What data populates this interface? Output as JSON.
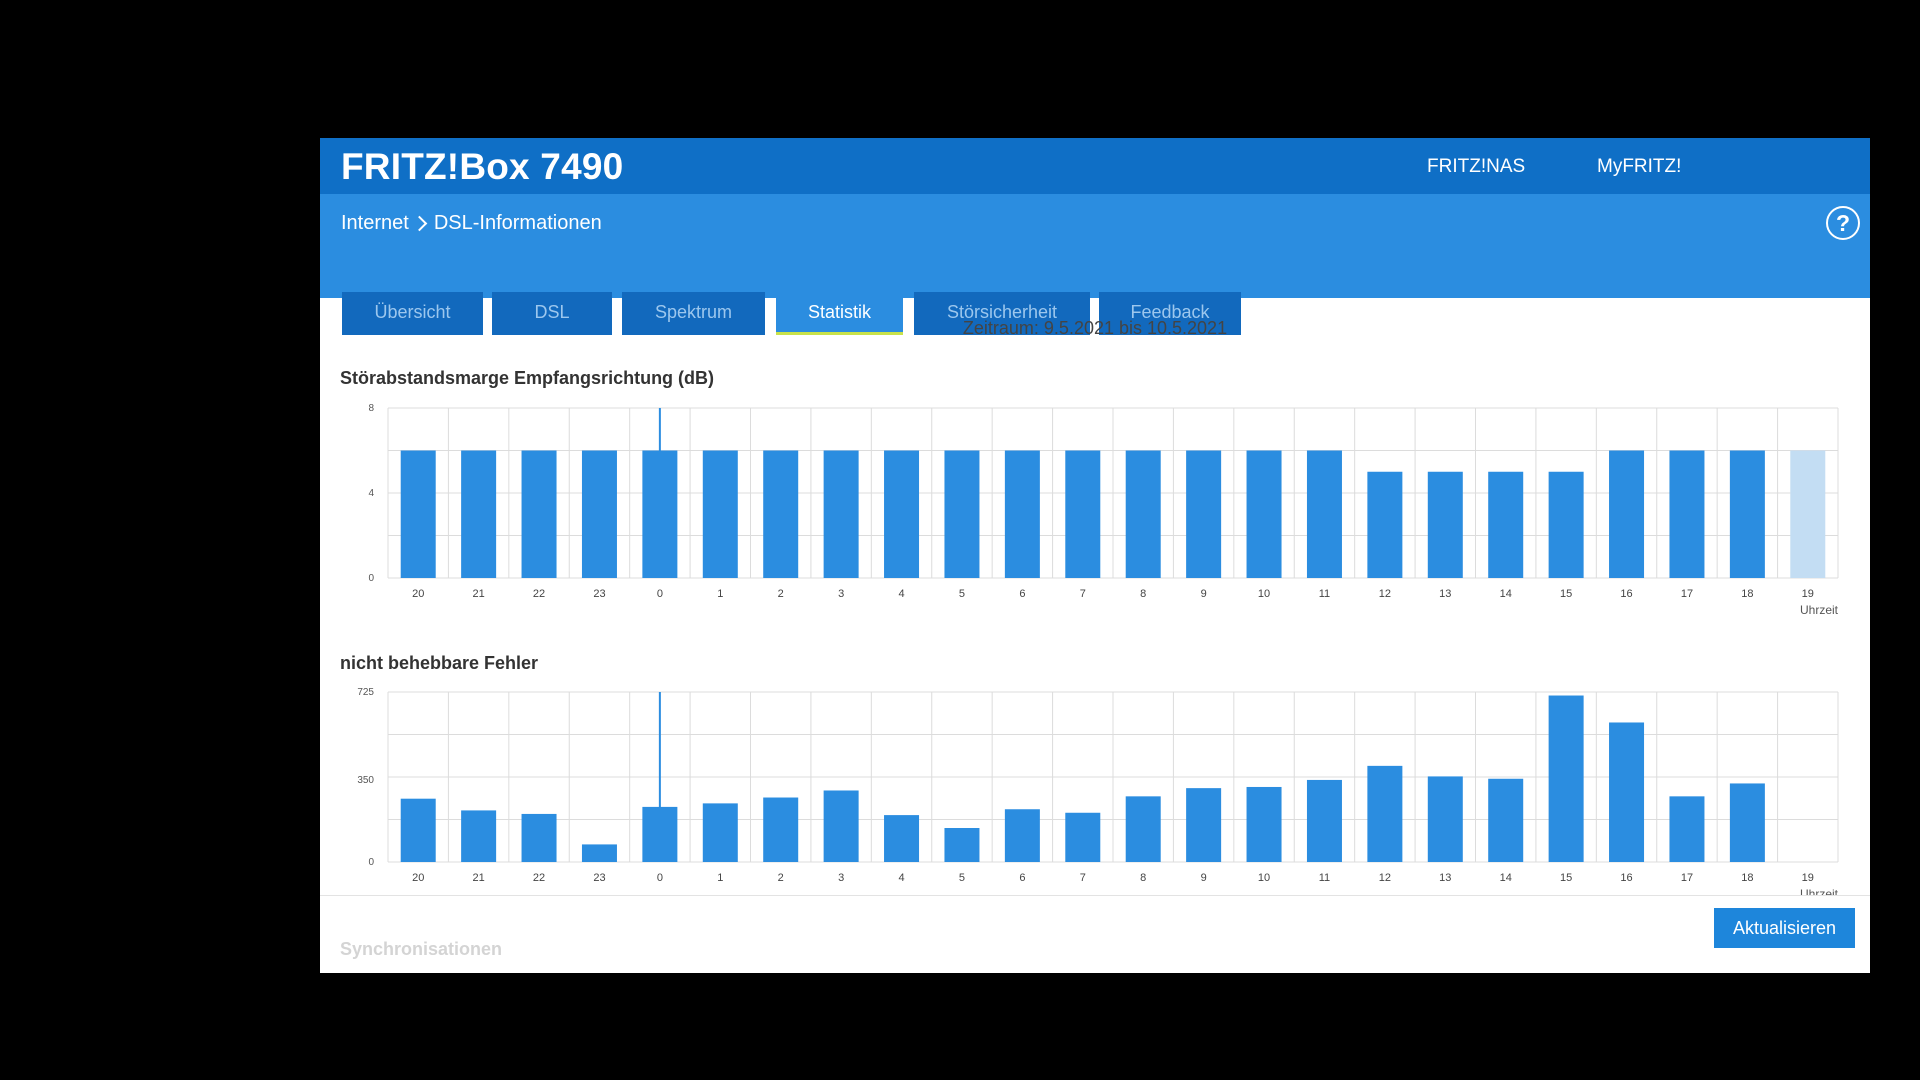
{
  "header": {
    "title": "FRITZ!Box 7490",
    "links": [
      "FRITZ!NAS",
      "MyFRITZ!"
    ]
  },
  "breadcrumb": {
    "parent": "Internet",
    "current": "DSL-Informationen"
  },
  "help_icon": "?",
  "tabs": [
    {
      "label": "Übersicht",
      "active": false
    },
    {
      "label": "DSL",
      "active": false
    },
    {
      "label": "Spektrum",
      "active": false
    },
    {
      "label": "Statistik",
      "active": true
    },
    {
      "label": "Störsicherheit",
      "active": false
    },
    {
      "label": "Feedback",
      "active": false
    }
  ],
  "period": "Zeitraum: 9.5.2021 bis 10.5.2021",
  "colors": {
    "bar": "#2b8de0",
    "bar_current": "#c3ddf3",
    "marker": "#2b8de0",
    "grid": "#dcdcdc"
  },
  "chart_data": [
    {
      "type": "bar",
      "title": "Störabstandsmarge Empfangsrichtung (dB)",
      "xlabel": "Uhrzeit",
      "categories": [
        "20",
        "21",
        "22",
        "23",
        "0",
        "1",
        "2",
        "3",
        "4",
        "5",
        "6",
        "7",
        "8",
        "9",
        "10",
        "11",
        "12",
        "13",
        "14",
        "15",
        "16",
        "17",
        "18",
        "19"
      ],
      "values": [
        6,
        6,
        6,
        6,
        6,
        6,
        6,
        6,
        6,
        6,
        6,
        6,
        6,
        6,
        6,
        6,
        5,
        5,
        5,
        5,
        6,
        6,
        6,
        6
      ],
      "highlight_last": true,
      "yticks": [
        0,
        4,
        8
      ],
      "ylim": [
        0,
        8
      ],
      "marker_category": "0"
    },
    {
      "type": "bar",
      "title": "nicht behebbare Fehler",
      "xlabel": "Uhrzeit",
      "categories": [
        "20",
        "21",
        "22",
        "23",
        "0",
        "1",
        "2",
        "3",
        "4",
        "5",
        "6",
        "7",
        "8",
        "9",
        "10",
        "11",
        "12",
        "13",
        "14",
        "15",
        "16",
        "17",
        "18",
        "19"
      ],
      "values": [
        270,
        220,
        205,
        75,
        235,
        250,
        275,
        305,
        200,
        145,
        225,
        210,
        280,
        315,
        320,
        350,
        410,
        365,
        355,
        710,
        595,
        280,
        335,
        null
      ],
      "highlight_last": false,
      "yticks": [
        0,
        350,
        725
      ],
      "ylim": [
        0,
        725
      ],
      "marker_category": "0"
    }
  ],
  "footer": {
    "refresh_label": "Aktualisieren",
    "next_section": "Synchronisationen"
  }
}
